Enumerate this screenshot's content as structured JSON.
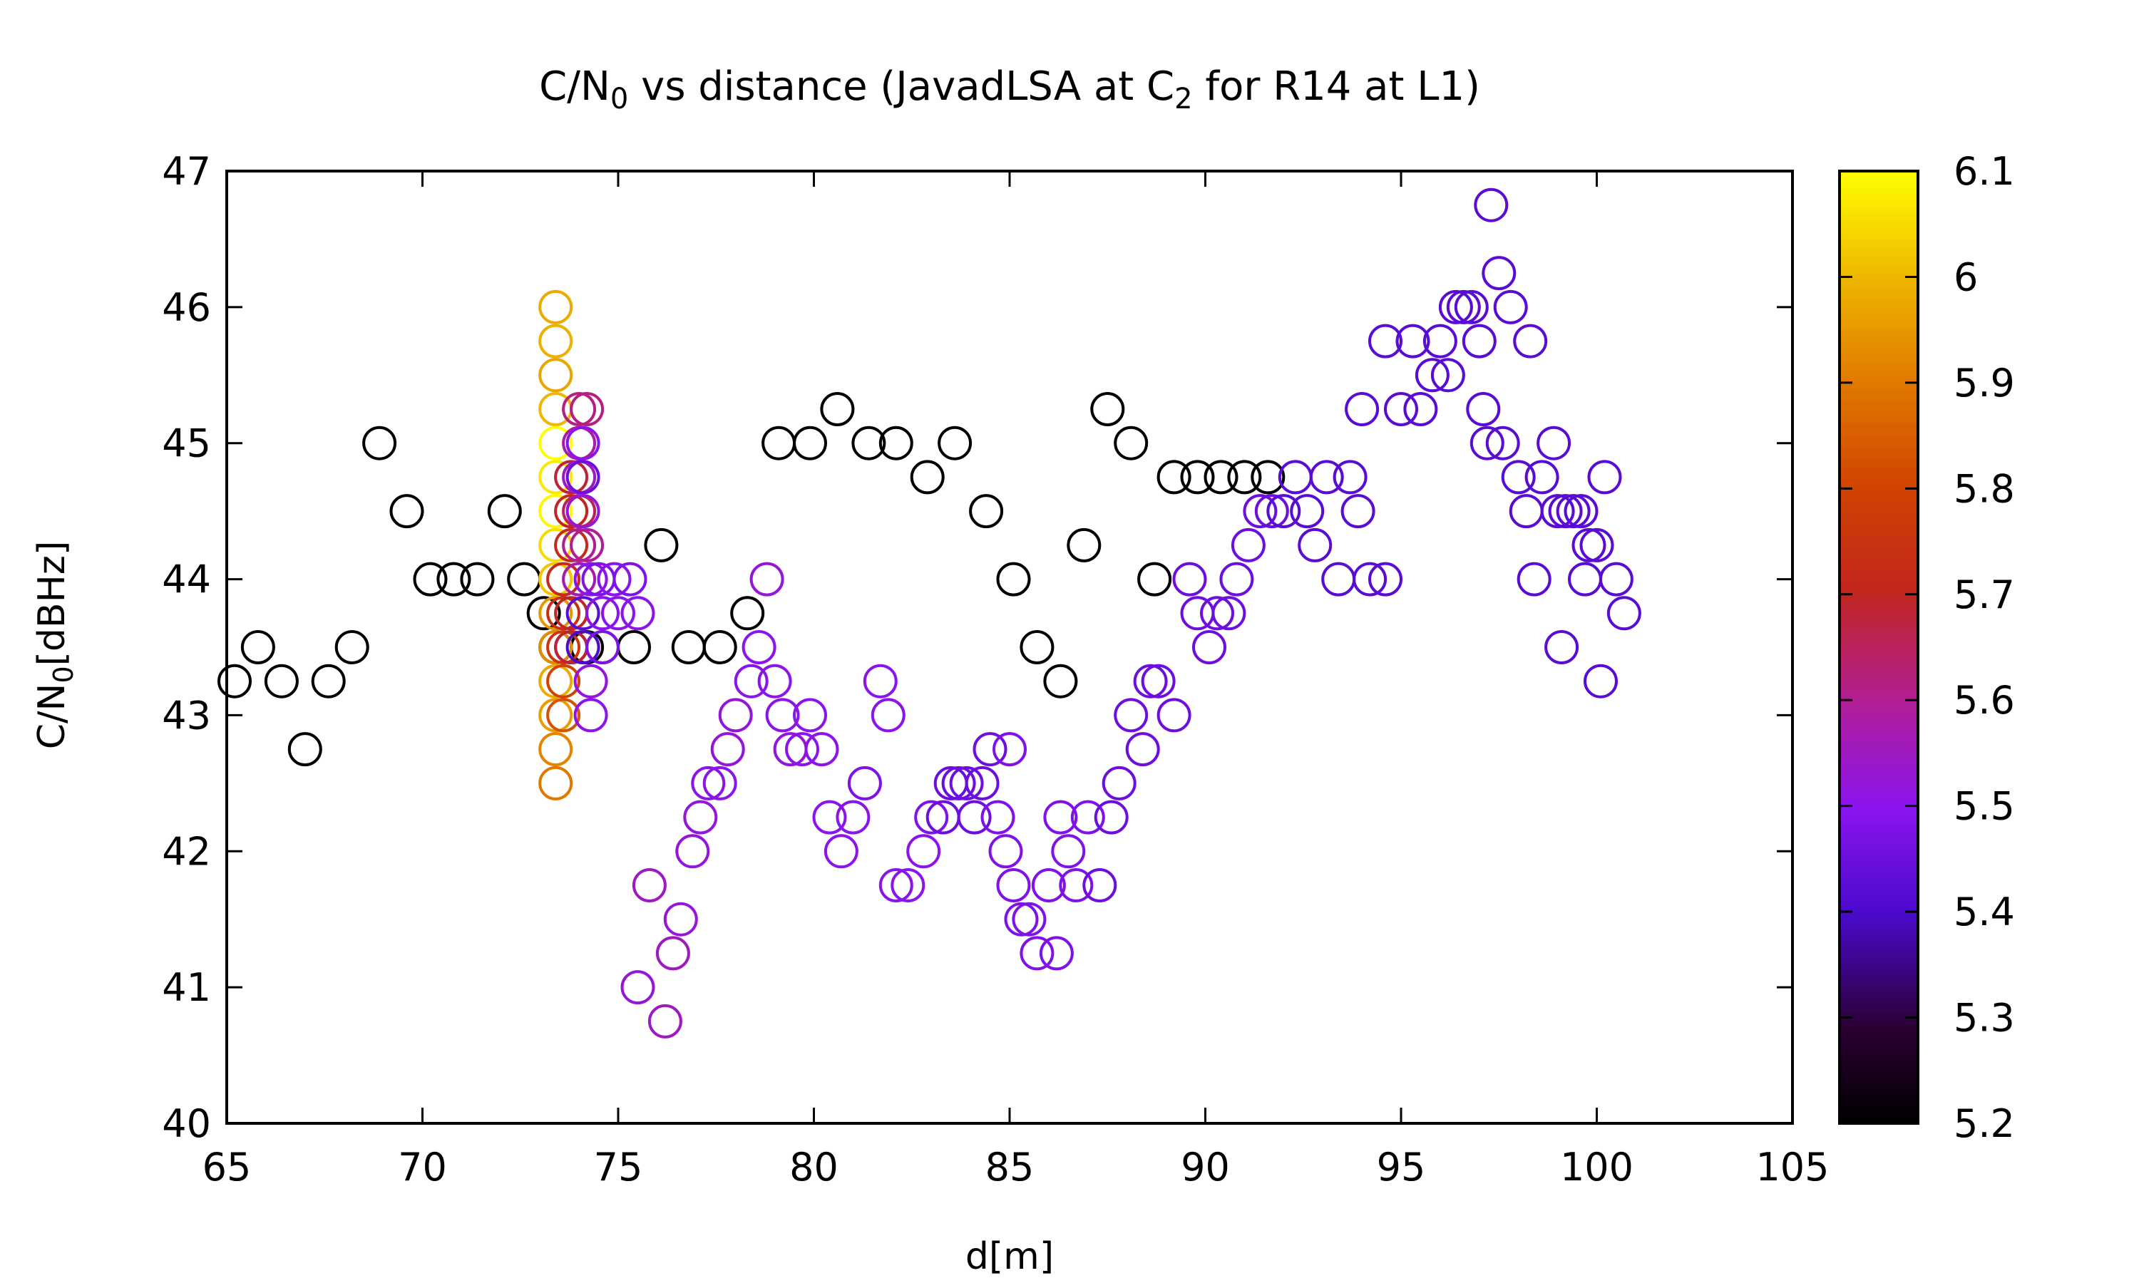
{
  "chart_data": {
    "type": "scatter",
    "title": {
      "t1": "C/N",
      "t1sub": "0",
      "t2": " vs distance (JavadLSA at C",
      "t2sub": "2",
      "t3": " for R14 at L1)"
    },
    "xlabel": "d[m]",
    "ylabel": {
      "main": "C/N",
      "sub": "0",
      "unit": "[dBHz]"
    },
    "xlim": [
      65,
      105
    ],
    "ylim": [
      40,
      47
    ],
    "xticks": [
      "65",
      "70",
      "75",
      "80",
      "85",
      "90",
      "95",
      "100",
      "105"
    ],
    "yticks": [
      "40",
      "41",
      "42",
      "43",
      "44",
      "45",
      "46",
      "47"
    ],
    "colorbar": {
      "range": [
        5.2,
        6.1
      ],
      "ticks": [
        "5.2",
        "5.3",
        "5.4",
        "5.5",
        "5.6",
        "5.7",
        "5.8",
        "5.9",
        "6",
        "6.1"
      ],
      "colormap": "gnuplot-pm3d"
    },
    "marker": "open-circle",
    "grid": false,
    "points": [
      [
        65.2,
        43.25,
        5.2
      ],
      [
        65.8,
        43.5,
        5.2
      ],
      [
        66.4,
        43.25,
        5.2
      ],
      [
        67.0,
        42.75,
        5.2
      ],
      [
        67.6,
        43.25,
        5.2
      ],
      [
        68.2,
        43.5,
        5.2
      ],
      [
        68.9,
        45.0,
        5.2
      ],
      [
        69.6,
        44.5,
        5.2
      ],
      [
        70.2,
        44.0,
        5.2
      ],
      [
        70.8,
        44.0,
        5.2
      ],
      [
        71.4,
        44.0,
        5.2
      ],
      [
        72.1,
        44.5,
        5.2
      ],
      [
        72.6,
        44.0,
        5.2
      ],
      [
        73.1,
        43.75,
        5.2
      ],
      [
        73.4,
        43.5,
        5.2
      ],
      [
        73.8,
        43.5,
        5.2
      ],
      [
        74.2,
        43.5,
        5.2
      ],
      [
        74.6,
        43.5,
        5.2
      ],
      [
        75.4,
        43.5,
        5.2
      ],
      [
        76.1,
        44.25,
        5.2
      ],
      [
        76.8,
        43.5,
        5.2
      ],
      [
        77.6,
        43.5,
        5.2
      ],
      [
        78.3,
        43.75,
        5.2
      ],
      [
        79.1,
        45.0,
        5.2
      ],
      [
        79.9,
        45.0,
        5.2
      ],
      [
        80.6,
        45.25,
        5.2
      ],
      [
        81.4,
        45.0,
        5.2
      ],
      [
        82.1,
        45.0,
        5.2
      ],
      [
        82.9,
        44.75,
        5.2
      ],
      [
        83.6,
        45.0,
        5.2
      ],
      [
        84.4,
        44.5,
        5.2
      ],
      [
        85.1,
        44.0,
        5.2
      ],
      [
        85.7,
        43.5,
        5.2
      ],
      [
        86.3,
        43.25,
        5.2
      ],
      [
        86.9,
        44.25,
        5.2
      ],
      [
        87.5,
        45.25,
        5.2
      ],
      [
        88.1,
        45.0,
        5.2
      ],
      [
        88.7,
        44.0,
        5.2
      ],
      [
        89.2,
        44.75,
        5.2
      ],
      [
        89.8,
        44.75,
        5.2
      ],
      [
        90.4,
        44.75,
        5.2
      ],
      [
        91.0,
        44.75,
        5.2
      ],
      [
        91.6,
        44.75,
        5.2
      ],
      [
        73.4,
        46.0,
        5.98
      ],
      [
        73.4,
        45.75,
        5.99
      ],
      [
        73.4,
        45.5,
        5.97
      ],
      [
        73.4,
        45.25,
        6.0
      ],
      [
        73.4,
        45.0,
        6.1
      ],
      [
        73.4,
        44.75,
        6.07
      ],
      [
        73.4,
        44.5,
        6.09
      ],
      [
        73.4,
        44.25,
        6.05
      ],
      [
        73.4,
        44.0,
        6.02
      ],
      [
        73.4,
        43.75,
        5.95
      ],
      [
        73.4,
        43.5,
        5.93
      ],
      [
        73.4,
        43.25,
        5.98
      ],
      [
        73.4,
        43.0,
        5.96
      ],
      [
        73.4,
        42.75,
        5.92
      ],
      [
        73.4,
        42.5,
        5.9
      ],
      [
        73.6,
        44.0,
        5.72
      ],
      [
        73.6,
        43.75,
        5.74
      ],
      [
        73.6,
        43.5,
        5.76
      ],
      [
        73.6,
        43.25,
        5.8
      ],
      [
        73.6,
        43.0,
        5.83
      ],
      [
        73.8,
        44.75,
        5.68
      ],
      [
        73.8,
        44.5,
        5.7
      ],
      [
        73.8,
        44.25,
        5.72
      ],
      [
        73.8,
        43.75,
        5.7
      ],
      [
        73.8,
        43.5,
        5.68
      ],
      [
        74.0,
        45.25,
        5.62
      ],
      [
        74.0,
        45.0,
        5.58
      ],
      [
        74.0,
        44.75,
        5.55
      ],
      [
        74.0,
        44.5,
        5.65
      ],
      [
        74.0,
        44.25,
        5.6
      ],
      [
        74.0,
        44.0,
        5.57
      ],
      [
        74.1,
        45.0,
        5.5
      ],
      [
        74.1,
        44.75,
        5.45
      ],
      [
        74.1,
        44.5,
        5.52
      ],
      [
        74.1,
        43.75,
        5.42
      ],
      [
        74.1,
        43.5,
        5.4
      ],
      [
        74.2,
        45.25,
        5.62
      ],
      [
        74.2,
        44.25,
        5.6
      ],
      [
        74.3,
        44.0,
        5.5
      ],
      [
        74.3,
        43.25,
        5.52
      ],
      [
        74.3,
        43.0,
        5.5
      ],
      [
        74.5,
        44.0,
        5.48
      ],
      [
        74.6,
        43.75,
        5.5
      ],
      [
        74.6,
        43.5,
        5.48
      ],
      [
        74.9,
        44.0,
        5.5
      ],
      [
        75.0,
        43.75,
        5.5
      ],
      [
        75.3,
        44.0,
        5.48
      ],
      [
        75.5,
        43.75,
        5.5
      ],
      [
        75.5,
        41.0,
        5.52
      ],
      [
        75.8,
        41.75,
        5.55
      ],
      [
        76.2,
        40.75,
        5.55
      ],
      [
        76.4,
        41.25,
        5.55
      ],
      [
        76.6,
        41.5,
        5.52
      ],
      [
        76.9,
        42.0,
        5.52
      ],
      [
        77.1,
        42.25,
        5.52
      ],
      [
        77.3,
        42.5,
        5.5
      ],
      [
        77.6,
        42.5,
        5.5
      ],
      [
        77.8,
        42.75,
        5.52
      ],
      [
        78.0,
        43.0,
        5.52
      ],
      [
        78.4,
        43.25,
        5.5
      ],
      [
        78.6,
        43.5,
        5.5
      ],
      [
        78.8,
        44.0,
        5.52
      ],
      [
        79.0,
        43.25,
        5.5
      ],
      [
        79.2,
        43.0,
        5.5
      ],
      [
        79.4,
        42.75,
        5.52
      ],
      [
        79.7,
        42.75,
        5.5
      ],
      [
        79.9,
        43.0,
        5.5
      ],
      [
        80.2,
        42.75,
        5.5
      ],
      [
        80.4,
        42.25,
        5.5
      ],
      [
        80.7,
        42.0,
        5.5
      ],
      [
        81.0,
        42.25,
        5.5
      ],
      [
        81.3,
        42.5,
        5.48
      ],
      [
        81.7,
        43.25,
        5.5
      ],
      [
        81.9,
        43.0,
        5.5
      ],
      [
        82.1,
        41.75,
        5.5
      ],
      [
        82.4,
        41.75,
        5.5
      ],
      [
        82.8,
        42.0,
        5.5
      ],
      [
        83.0,
        42.25,
        5.48
      ],
      [
        83.3,
        42.25,
        5.45
      ],
      [
        83.5,
        42.5,
        5.45
      ],
      [
        83.7,
        42.5,
        5.45
      ],
      [
        83.9,
        42.5,
        5.45
      ],
      [
        84.1,
        42.25,
        5.45
      ],
      [
        84.3,
        42.5,
        5.45
      ],
      [
        84.5,
        42.75,
        5.45
      ],
      [
        84.7,
        42.25,
        5.48
      ],
      [
        84.9,
        42.0,
        5.48
      ],
      [
        85.0,
        42.75,
        5.48
      ],
      [
        85.1,
        41.75,
        5.48
      ],
      [
        85.3,
        41.5,
        5.48
      ],
      [
        85.5,
        41.5,
        5.48
      ],
      [
        85.7,
        41.25,
        5.48
      ],
      [
        86.0,
        41.75,
        5.48
      ],
      [
        86.2,
        41.25,
        5.48
      ],
      [
        86.3,
        42.25,
        5.48
      ],
      [
        86.5,
        42.0,
        5.48
      ],
      [
        86.7,
        41.75,
        5.48
      ],
      [
        87.0,
        42.25,
        5.48
      ],
      [
        87.3,
        41.75,
        5.45
      ],
      [
        87.6,
        42.25,
        5.45
      ],
      [
        87.8,
        42.5,
        5.45
      ],
      [
        88.1,
        43.0,
        5.45
      ],
      [
        88.4,
        42.75,
        5.45
      ],
      [
        88.6,
        43.25,
        5.45
      ],
      [
        88.8,
        43.25,
        5.45
      ],
      [
        89.2,
        43.0,
        5.45
      ],
      [
        89.6,
        44.0,
        5.45
      ],
      [
        89.8,
        43.75,
        5.45
      ],
      [
        90.1,
        43.5,
        5.45
      ],
      [
        90.3,
        43.75,
        5.45
      ],
      [
        90.6,
        43.75,
        5.45
      ],
      [
        90.8,
        44.0,
        5.45
      ],
      [
        91.1,
        44.25,
        5.45
      ],
      [
        91.4,
        44.5,
        5.45
      ],
      [
        91.7,
        44.5,
        5.45
      ],
      [
        92.0,
        44.5,
        5.42
      ],
      [
        92.3,
        44.75,
        5.42
      ],
      [
        92.6,
        44.5,
        5.42
      ],
      [
        92.8,
        44.25,
        5.42
      ],
      [
        93.1,
        44.75,
        5.42
      ],
      [
        93.4,
        44.0,
        5.42
      ],
      [
        93.7,
        44.75,
        5.42
      ],
      [
        93.9,
        44.5,
        5.42
      ],
      [
        94.0,
        45.25,
        5.42
      ],
      [
        94.2,
        44.0,
        5.42
      ],
      [
        94.6,
        44.0,
        5.42
      ],
      [
        94.6,
        45.75,
        5.42
      ],
      [
        95.0,
        45.25,
        5.42
      ],
      [
        95.3,
        45.75,
        5.42
      ],
      [
        95.5,
        45.25,
        5.42
      ],
      [
        95.8,
        45.5,
        5.42
      ],
      [
        96.0,
        45.75,
        5.42
      ],
      [
        96.2,
        45.5,
        5.42
      ],
      [
        96.4,
        46.0,
        5.42
      ],
      [
        96.6,
        46.0,
        5.42
      ],
      [
        96.8,
        46.0,
        5.42
      ],
      [
        97.0,
        45.75,
        5.42
      ],
      [
        97.1,
        45.25,
        5.42
      ],
      [
        97.2,
        45.0,
        5.42
      ],
      [
        97.3,
        46.75,
        5.42
      ],
      [
        97.5,
        46.25,
        5.42
      ],
      [
        97.6,
        45.0,
        5.42
      ],
      [
        97.8,
        46.0,
        5.42
      ],
      [
        98.0,
        44.75,
        5.42
      ],
      [
        98.2,
        44.5,
        5.42
      ],
      [
        98.3,
        45.75,
        5.42
      ],
      [
        98.6,
        44.75,
        5.42
      ],
      [
        98.4,
        44.0,
        5.42
      ],
      [
        98.9,
        45.0,
        5.42
      ],
      [
        99.0,
        44.5,
        5.42
      ],
      [
        99.1,
        43.5,
        5.42
      ],
      [
        99.2,
        44.5,
        5.42
      ],
      [
        99.4,
        44.5,
        5.42
      ],
      [
        99.6,
        44.5,
        5.42
      ],
      [
        99.8,
        44.25,
        5.42
      ],
      [
        99.7,
        44.0,
        5.42
      ],
      [
        100.0,
        44.25,
        5.42
      ],
      [
        100.1,
        43.25,
        5.42
      ],
      [
        100.2,
        44.75,
        5.42
      ],
      [
        100.5,
        44.0,
        5.42
      ],
      [
        100.7,
        43.75,
        5.42
      ]
    ]
  }
}
